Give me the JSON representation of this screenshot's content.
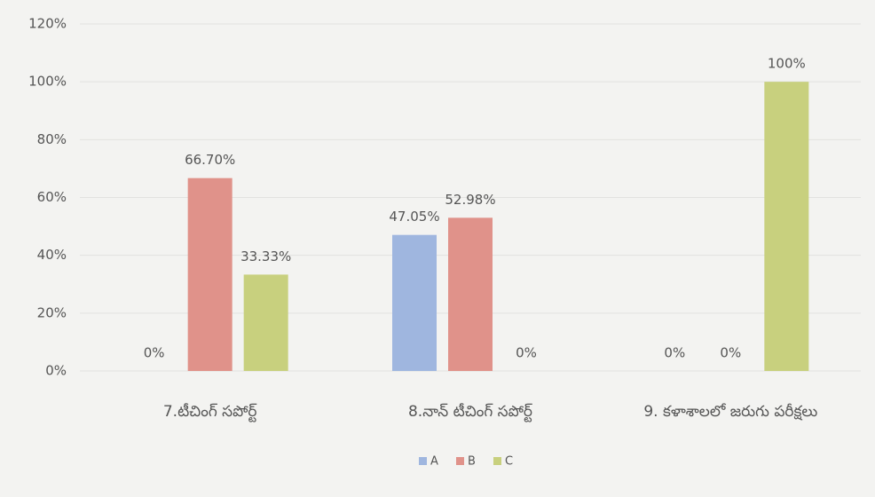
{
  "chart_data": {
    "type": "bar",
    "categories": [
      "7.టీచింగ్ సపోర్ట్",
      "8.నాన్ టీచింగ్ సపోర్ట్",
      "9. కళాశాలలో జరుగు పరీక్షలు"
    ],
    "series": [
      {
        "name": "A",
        "color": "#9fb6df",
        "values": [
          0,
          47.05,
          0
        ],
        "value_labels": [
          "0%",
          "47.05%",
          "0%"
        ]
      },
      {
        "name": "B",
        "color": "#e0928a",
        "values": [
          66.7,
          52.98,
          0
        ],
        "value_labels": [
          "66.70%",
          "52.98%",
          "0%"
        ]
      },
      {
        "name": "C",
        "color": "#c8d07e",
        "values": [
          33.33,
          0,
          100
        ],
        "value_labels": [
          "33.33%",
          "0%",
          "100%"
        ]
      }
    ],
    "ylim": [
      0,
      120
    ],
    "yticks": [
      {
        "value": 0,
        "label": "0%"
      },
      {
        "value": 20,
        "label": "20%"
      },
      {
        "value": 40,
        "label": "40%"
      },
      {
        "value": 60,
        "label": "60%"
      },
      {
        "value": 80,
        "label": "80%"
      },
      {
        "value": 100,
        "label": "100%"
      },
      {
        "value": 120,
        "label": "120%"
      }
    ],
    "grid": true,
    "legend": "bottom"
  }
}
